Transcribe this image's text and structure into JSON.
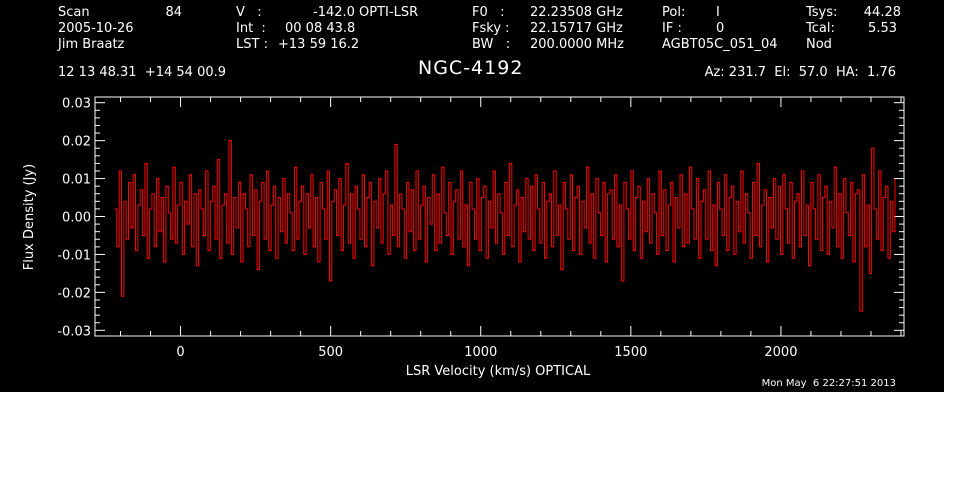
{
  "header": {
    "scan_label": "Scan",
    "scan_value": "84",
    "date": "2005-10-26",
    "observer": "Jim Braatz",
    "v_label": "V   :",
    "v_value": "-142.0 OPTI-LSR",
    "int_label": "Int  :",
    "int_value": "00 08 43.8",
    "lst_label": "LST : ",
    "lst_value": "+13 59 16.2",
    "f0_label": "F0   :",
    "f0_value": "22.23508 GHz",
    "fsky_label": "Fsky :",
    "fsky_value": "22.15717 GHz",
    "bw_label": "BW   :",
    "bw_value": "200.0000 MHz",
    "pol_label": "Pol:",
    "pol_value": "I",
    "if_label": "IF :",
    "if_value": "0",
    "project": "AGBT05C_051_04",
    "tsys_label": "Tsys:",
    "tsys_value": "44.28",
    "tcal_label": "Tcal:",
    "tcal_value": "5.53",
    "mode": "Nod",
    "coords": "12 13 48.31  +14 54 00.9",
    "az_el_ha": "Az: 231.7  El:  57.0  HA:  1.76"
  },
  "footer": {
    "timestamp": "Mon May  6 22:27:51 2013"
  },
  "colors": {
    "background": "#000000",
    "foreground": "#ffffff",
    "trace": "#ff0000"
  },
  "chart_data": {
    "type": "line",
    "title": "NGC-4192",
    "xlabel": "LSR Velocity (km/s) OPTICAL",
    "ylabel": "Flux Density (Jy)",
    "xlim": [
      -285,
      2410
    ],
    "ylim": [
      -0.0315,
      0.0315
    ],
    "xticks": [
      0,
      500,
      1000,
      1500,
      2000
    ],
    "xtick_labels": [
      "0",
      "500",
      "1000",
      "1500",
      "2000"
    ],
    "yticks": [
      -0.03,
      -0.02,
      -0.01,
      0.0,
      0.01,
      0.02,
      0.03
    ],
    "ytick_labels": [
      "-0.03",
      "-0.02",
      "-0.01",
      "0.00",
      "0.01",
      "0.02",
      "0.03"
    ],
    "grid": false,
    "series": [
      {
        "color": "#ff0000",
        "x_start": -220,
        "x_end": 2380,
        "values": [
          0.002,
          -0.008,
          0.012,
          -0.021,
          0.004,
          -0.006,
          0.009,
          -0.003,
          0.011,
          -0.009,
          0.003,
          0.007,
          -0.005,
          0.014,
          -0.011,
          0.002,
          0.006,
          -0.008,
          0.01,
          -0.004,
          0.005,
          -0.012,
          0.008,
          0.001,
          -0.006,
          0.013,
          -0.007,
          0.003,
          0.009,
          -0.01,
          0.004,
          -0.002,
          0.011,
          -0.008,
          0.006,
          -0.013,
          0.007,
          0.002,
          -0.005,
          0.012,
          -0.009,
          0.004,
          0.008,
          -0.006,
          0.015,
          -0.011,
          0.003,
          0.006,
          -0.007,
          0.02,
          -0.01,
          0.005,
          -0.003,
          0.009,
          -0.012,
          0.006,
          0.002,
          -0.008,
          0.011,
          -0.005,
          0.007,
          -0.014,
          0.004,
          0.009,
          -0.006,
          0.012,
          -0.009,
          0.003,
          0.008,
          -0.011,
          0.005,
          -0.004,
          0.01,
          -0.007,
          0.006,
          0.001,
          -0.009,
          0.013,
          -0.006,
          0.004,
          0.008,
          -0.01,
          0.006,
          -0.003,
          0.011,
          -0.008,
          0.005,
          -0.012,
          0.009,
          0.002,
          -0.006,
          0.012,
          -0.017,
          0.004,
          0.007,
          -0.005,
          0.01,
          -0.009,
          0.003,
          0.014,
          -0.007,
          0.006,
          -0.011,
          0.008,
          0.002,
          -0.006,
          0.011,
          -0.008,
          0.005,
          0.009,
          -0.013,
          0.004,
          -0.003,
          0.01,
          -0.007,
          0.006,
          0.012,
          -0.01,
          0.003,
          -0.005,
          0.019,
          -0.008,
          0.006,
          0.002,
          -0.011,
          0.009,
          -0.004,
          0.007,
          -0.009,
          0.012,
          -0.006,
          0.003,
          0.008,
          -0.012,
          0.005,
          -0.002,
          0.011,
          -0.009,
          0.006,
          -0.007,
          0.013,
          0.001,
          -0.005,
          0.009,
          -0.01,
          0.004,
          0.007,
          -0.006,
          0.012,
          -0.008,
          0.003,
          -0.013,
          0.009,
          0.002,
          -0.006,
          0.01,
          -0.009,
          0.005,
          0.008,
          -0.011,
          0.004,
          -0.003,
          0.012,
          -0.007,
          0.006,
          0.001,
          -0.01,
          0.009,
          -0.005,
          0.014,
          -0.008,
          0.003,
          0.007,
          -0.012,
          0.005,
          -0.004,
          0.01,
          -0.006,
          0.008,
          -0.009,
          0.011,
          0.002,
          -0.007,
          0.009,
          -0.011,
          0.004,
          0.006,
          -0.008,
          0.012,
          -0.005,
          0.003,
          -0.014,
          0.009,
          0.002,
          -0.006,
          0.011,
          -0.009,
          0.005,
          0.008,
          -0.01,
          0.004,
          -0.003,
          0.013,
          -0.007,
          0.006,
          -0.011,
          0.01,
          0.001,
          -0.005,
          0.009,
          -0.012,
          0.006,
          0.007,
          -0.006,
          0.011,
          -0.008,
          0.003,
          -0.017,
          0.009,
          0.002,
          -0.006,
          0.012,
          -0.009,
          0.005,
          0.008,
          -0.011,
          0.004,
          -0.004,
          0.01,
          -0.007,
          0.006,
          0.001,
          -0.01,
          0.012,
          -0.005,
          0.007,
          -0.009,
          0.003,
          0.009,
          -0.012,
          0.005,
          -0.003,
          0.011,
          -0.008,
          0.006,
          -0.007,
          0.013,
          0.002,
          -0.006,
          0.01,
          -0.011,
          0.004,
          0.007,
          -0.006,
          0.012,
          -0.009,
          0.003,
          -0.013,
          0.009,
          0.002,
          -0.005,
          0.011,
          -0.009,
          0.005,
          0.008,
          -0.01,
          0.004,
          -0.004,
          0.012,
          -0.007,
          0.006,
          0.001,
          -0.011,
          0.009,
          -0.005,
          0.014,
          -0.008,
          0.003,
          0.007,
          -0.012,
          0.005,
          -0.003,
          0.01,
          -0.006,
          0.008,
          -0.01,
          0.011,
          0.002,
          -0.007,
          0.009,
          -0.011,
          0.004,
          0.006,
          -0.008,
          0.012,
          -0.005,
          0.003,
          -0.013,
          0.009,
          0.002,
          -0.006,
          0.011,
          -0.009,
          0.005,
          0.008,
          -0.01,
          0.004,
          -0.003,
          0.013,
          -0.008,
          0.006,
          -0.011,
          0.01,
          0.001,
          -0.005,
          0.009,
          -0.012,
          0.006,
          0.007,
          -0.025,
          0.011,
          -0.008,
          0.003,
          -0.015,
          0.018,
          0.002,
          -0.006,
          0.012,
          -0.009,
          0.005,
          0.008,
          -0.011,
          0.004,
          -0.004,
          0.01
        ]
      }
    ]
  }
}
